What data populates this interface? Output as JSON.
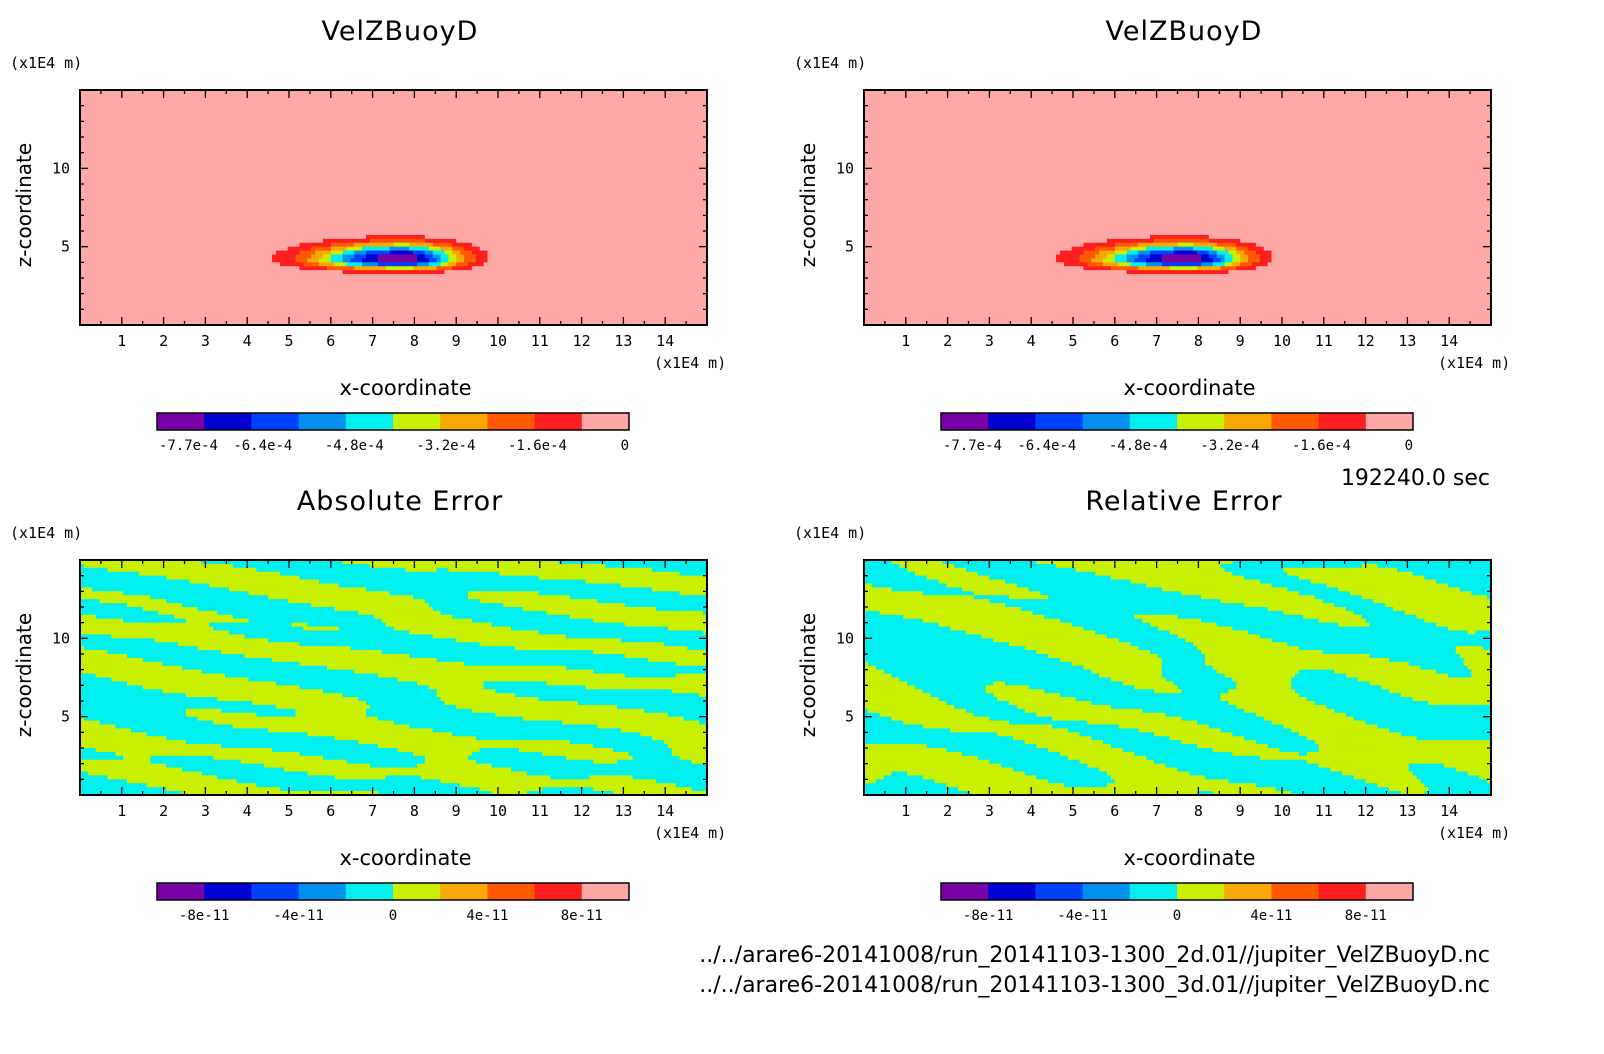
{
  "time_label": "192240.0 sec",
  "files": [
    "../../arare6-20141008/run_20141103-1300_2d.01//jupiter_VelZBuoyD.nc",
    "../../arare6-20141008/run_20141103-1300_3d.01//jupiter_VelZBuoyD.nc"
  ],
  "palette": [
    "#7a00a8",
    "#0000d0",
    "#0040ff",
    "#0090f0",
    "#00f0f0",
    "#c8f000",
    "#f8a800",
    "#ff5a00",
    "#ff1e1e",
    "#ffa8a8"
  ],
  "chart_data": [
    {
      "type": "heatmap",
      "title": "VelZBuoyD",
      "xlabel": "x-coordinate",
      "ylabel": "z-coordinate",
      "x_unit": "(x1E4 m)",
      "y_unit": "(x1E4 m)",
      "xlim": [
        0,
        15
      ],
      "ylim": [
        0,
        15
      ],
      "x_ticks": [
        1,
        2,
        3,
        4,
        5,
        6,
        7,
        8,
        9,
        10,
        11,
        12,
        13,
        14
      ],
      "y_ticks": [
        5,
        10
      ],
      "colorbar_range": [
        -0.000825,
        0
      ],
      "colorbar_ticks": [
        "-7.7e-4",
        "-6.4e-4",
        "-4.8e-4",
        "-3.2e-4",
        "-1.6e-4",
        "0"
      ],
      "field": "buoyancy_plume",
      "plume_center": [
        7.7,
        4.2
      ],
      "plume_min": -0.00082
    },
    {
      "type": "heatmap",
      "title": "VelZBuoyD",
      "xlabel": "x-coordinate",
      "ylabel": "z-coordinate",
      "x_unit": "(x1E4 m)",
      "y_unit": "(x1E4 m)",
      "xlim": [
        0,
        15
      ],
      "ylim": [
        0,
        15
      ],
      "x_ticks": [
        1,
        2,
        3,
        4,
        5,
        6,
        7,
        8,
        9,
        10,
        11,
        12,
        13,
        14
      ],
      "y_ticks": [
        5,
        10
      ],
      "colorbar_range": [
        -0.000825,
        0
      ],
      "colorbar_ticks": [
        "-7.7e-4",
        "-6.4e-4",
        "-4.8e-4",
        "-3.2e-4",
        "-1.6e-4",
        "0"
      ],
      "field": "buoyancy_plume",
      "plume_center": [
        7.7,
        4.2
      ],
      "plume_min": -0.00082
    },
    {
      "type": "heatmap",
      "title": "Absolute Error",
      "xlabel": "x-coordinate",
      "ylabel": "z-coordinate",
      "x_unit": "(x1E4 m)",
      "y_unit": "(x1E4 m)",
      "xlim": [
        0,
        15
      ],
      "ylim": [
        0,
        15
      ],
      "x_ticks": [
        1,
        2,
        3,
        4,
        5,
        6,
        7,
        8,
        9,
        10,
        11,
        12,
        13,
        14
      ],
      "y_ticks": [
        5,
        10
      ],
      "colorbar_range": [
        -1e-10,
        1e-10
      ],
      "colorbar_ticks": [
        "-8e-11",
        "-4e-11",
        "0",
        "4e-11",
        "8e-11"
      ],
      "field": "noise",
      "visible_levels": [
        "0 to 2e-11",
        "-2e-11 to 0"
      ],
      "seed": 7
    },
    {
      "type": "heatmap",
      "title": "Relative Error",
      "xlabel": "x-coordinate",
      "ylabel": "z-coordinate",
      "x_unit": "(x1E4 m)",
      "y_unit": "(x1E4 m)",
      "xlim": [
        0,
        15
      ],
      "ylim": [
        0,
        15
      ],
      "x_ticks": [
        1,
        2,
        3,
        4,
        5,
        6,
        7,
        8,
        9,
        10,
        11,
        12,
        13,
        14
      ],
      "y_ticks": [
        5,
        10
      ],
      "colorbar_range": [
        -1e-10,
        1e-10
      ],
      "colorbar_ticks": [
        "-8e-11",
        "-4e-11",
        "0",
        "4e-11",
        "8e-11"
      ],
      "field": "noise",
      "visible_levels": [
        "0 to 2e-11",
        "-2e-11 to 0"
      ],
      "seed": 13
    }
  ]
}
